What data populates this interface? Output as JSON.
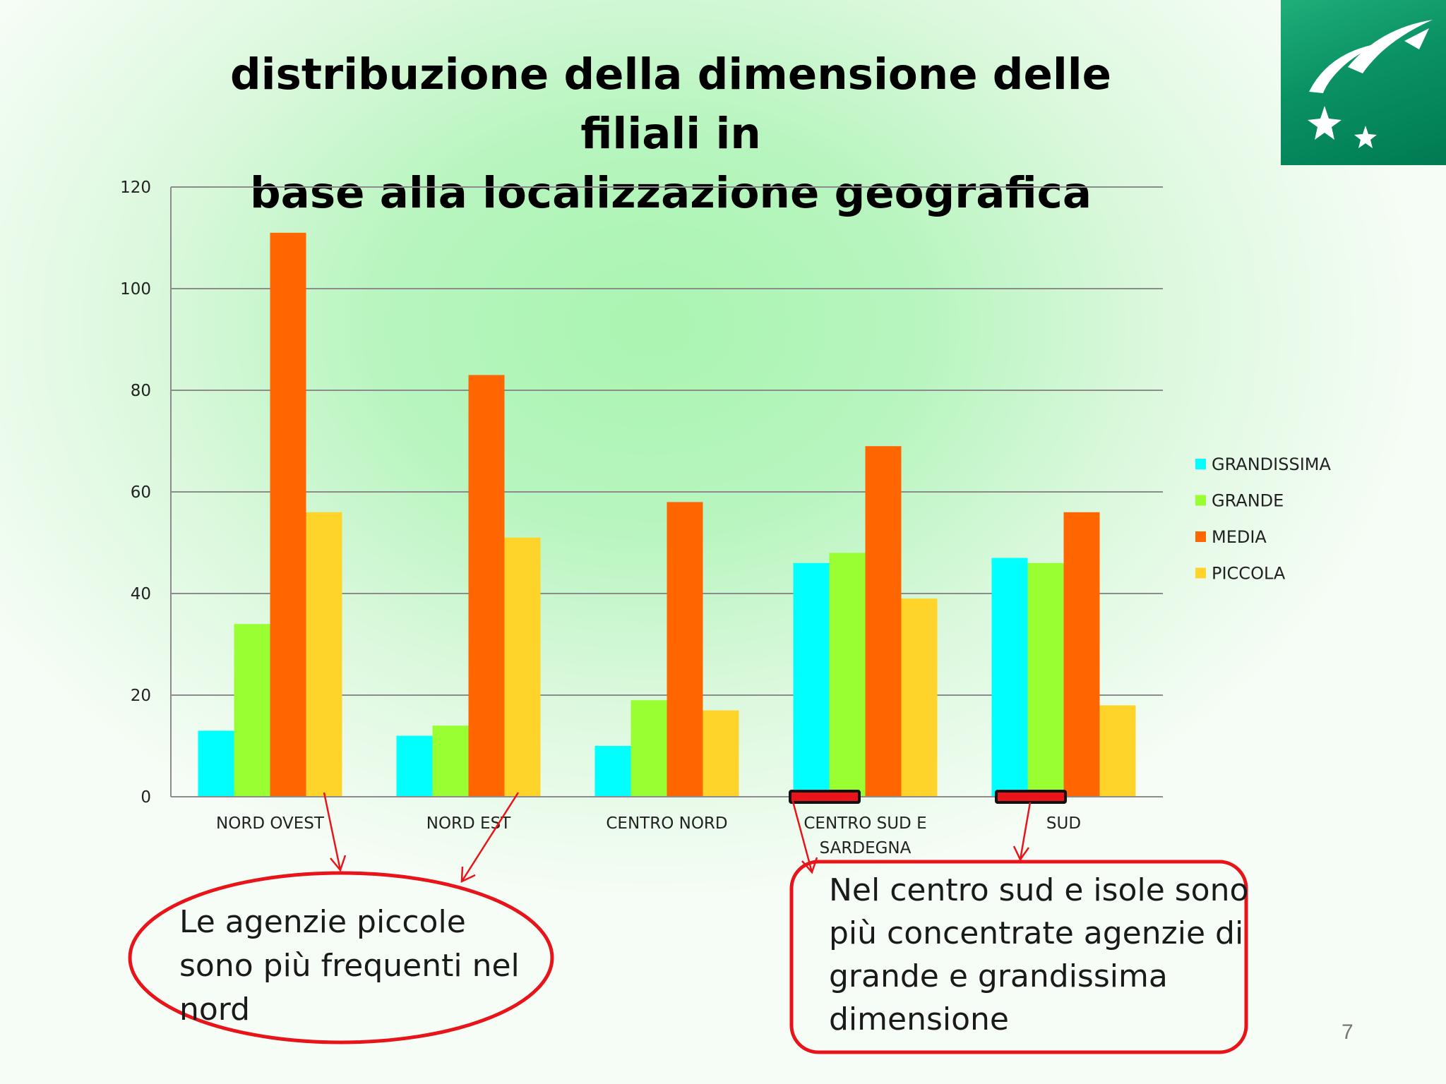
{
  "slide": {
    "title_line_1": "distribuzione della dimensione delle filiali in",
    "title_line_2": "base alla localizzazione geografica",
    "page_number": "7"
  },
  "logo": {
    "name": "bnp-paribas-stars-logo"
  },
  "chart_data": {
    "type": "bar",
    "categories": [
      "NORD OVEST",
      "NORD EST",
      "CENTRO NORD",
      "CENTRO SUD E SARDEGNA",
      "SUD"
    ],
    "category_lines": [
      [
        "NORD OVEST"
      ],
      [
        "NORD EST"
      ],
      [
        "CENTRO NORD"
      ],
      [
        "CENTRO SUD E",
        "SARDEGNA"
      ],
      [
        "SUD"
      ]
    ],
    "series": [
      {
        "name": "GRANDISSIMA",
        "color": "#00ffff",
        "values": [
          13,
          12,
          10,
          46,
          47
        ]
      },
      {
        "name": "GRANDE",
        "color": "#99ff33",
        "values": [
          34,
          14,
          19,
          48,
          46
        ]
      },
      {
        "name": "MEDIA",
        "color": "#ff6600",
        "values": [
          111,
          83,
          58,
          69,
          56
        ]
      },
      {
        "name": "PICCOLA",
        "color": "#ffd42a",
        "values": [
          56,
          51,
          17,
          39,
          18
        ]
      }
    ],
    "ylim": [
      0,
      120
    ],
    "yticks": [
      0,
      20,
      40,
      60,
      80,
      100,
      120
    ],
    "grid": true,
    "legend_position": "right"
  },
  "annotations": {
    "north_callout": {
      "text": "Le agenzie piccole sono più frequenti nel nord",
      "shape": "ellipse",
      "color": "#e8141a"
    },
    "south_callout": {
      "text": "Nel centro sud e isole sono più concentrate agenzie di grande e grandissima dimensione",
      "shape": "rounded-rectangle",
      "color": "#e8141a"
    },
    "highlight_marker_color": "#e8141a"
  }
}
